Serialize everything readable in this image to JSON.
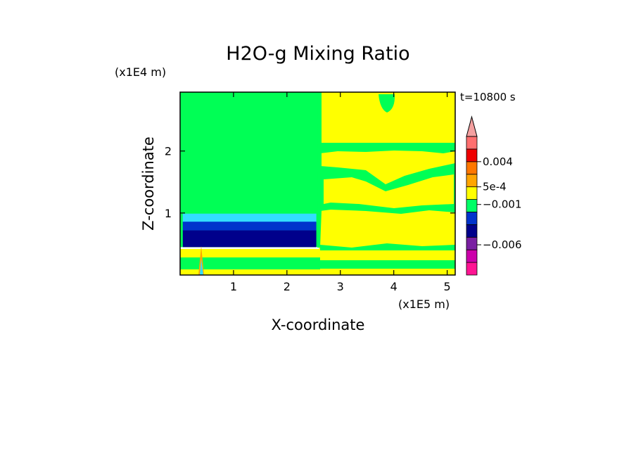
{
  "chart_data": {
    "type": "heatmap",
    "title": "H2O-g Mixing Ratio",
    "xlabel": "X-coordinate",
    "ylabel": "Z-coordinate",
    "x_unit": "(x1E5 m)",
    "y_unit": "(x1E4 m)",
    "time_label": "t=10800 s",
    "xlim": [
      0,
      5.15
    ],
    "ylim": [
      0,
      2.95
    ],
    "x_ticks": [
      1,
      2,
      3,
      4,
      5
    ],
    "y_ticks": [
      1,
      2
    ],
    "colorbar": {
      "labels": [
        {
          "text": "0.004",
          "level": 9
        },
        {
          "text": "5e-4",
          "level": 7
        },
        {
          "text": "−0.001",
          "level": 5.6
        },
        {
          "text": "−0.006",
          "level": 2.4
        }
      ],
      "bands": [
        "#ff1493",
        "#cc00aa",
        "#7a1fa2",
        "#00008b",
        "#0033cc",
        "#00ff66",
        "#ffff00",
        "#ffa500",
        "#ff7700",
        "#ee0000",
        "#ff6f6f"
      ],
      "top_arrow_color": "#f4a0a0"
    },
    "regions": [
      {
        "x": [
          0,
          2.6
        ],
        "z": [
          0.45,
          2.95
        ],
        "color": "#00ff55"
      },
      {
        "x": [
          2.6,
          5.15
        ],
        "z": [
          0,
          2.95
        ],
        "color": "#ffff00"
      },
      {
        "x": [
          0.05,
          2.55
        ],
        "z": [
          0.85,
          0.99
        ],
        "color": "#33ddff"
      },
      {
        "x": [
          0.05,
          2.55
        ],
        "z": [
          0.72,
          0.86
        ],
        "color": "#0033cc"
      },
      {
        "x": [
          0.05,
          2.55
        ],
        "z": [
          0.45,
          0.72
        ],
        "color": "#00008b"
      }
    ],
    "grid": false,
    "legend": "right"
  }
}
